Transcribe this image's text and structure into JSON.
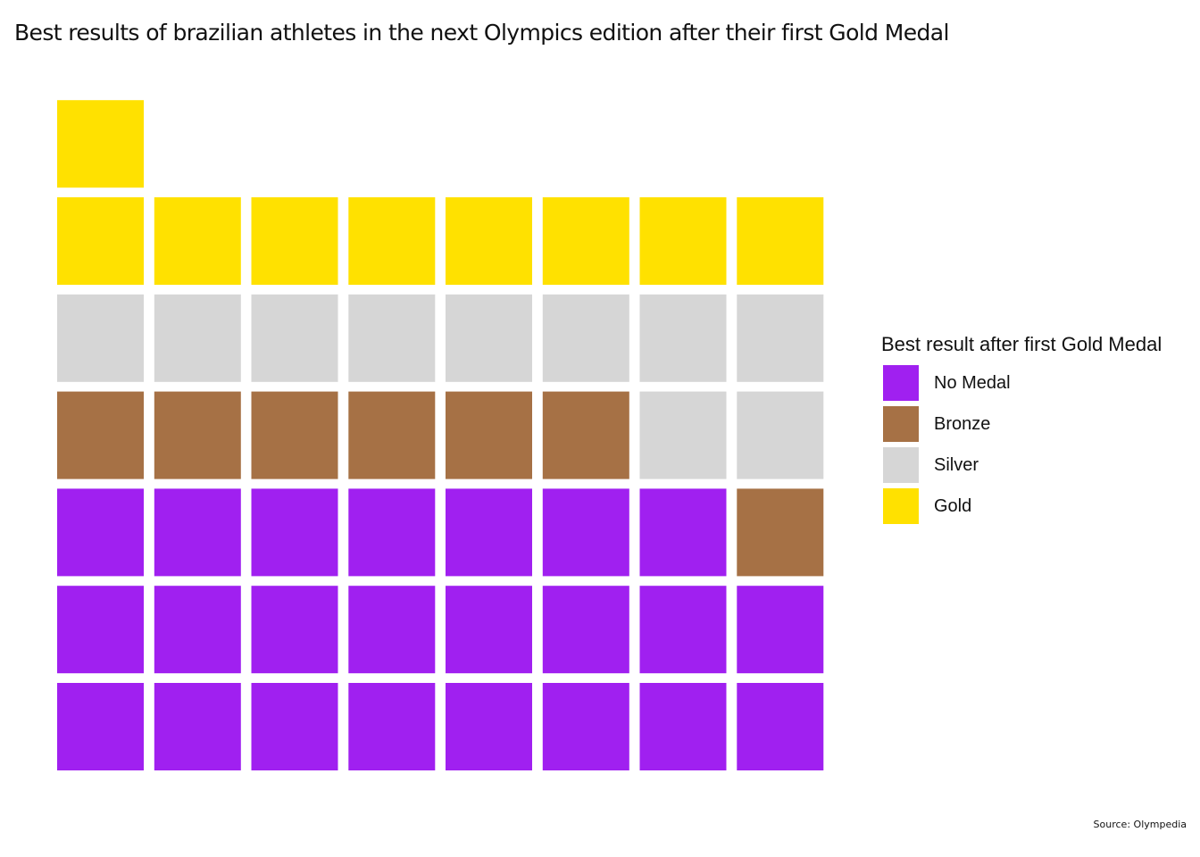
{
  "chart_data": {
    "type": "waffle",
    "title": "Best results of brazilian athletes in the next Olympics edition after their first Gold Medal",
    "caption": "Source: Olympedia",
    "columns": 8,
    "fill_order": "bottom-to-top, left-to-right",
    "categories": [
      "No Medal",
      "Bronze",
      "Silver",
      "Gold"
    ],
    "values": [
      23,
      7,
      10,
      9
    ],
    "colors": {
      "No Medal": "#A020F0",
      "Bronze": "#A67145",
      "Silver": "#D6D6D6",
      "Gold": "#FFE100"
    },
    "legend": {
      "title": "Best result after first Gold Medal",
      "position": "right",
      "items": [
        "No Medal",
        "Bronze",
        "Silver",
        "Gold"
      ]
    },
    "grid": false
  }
}
